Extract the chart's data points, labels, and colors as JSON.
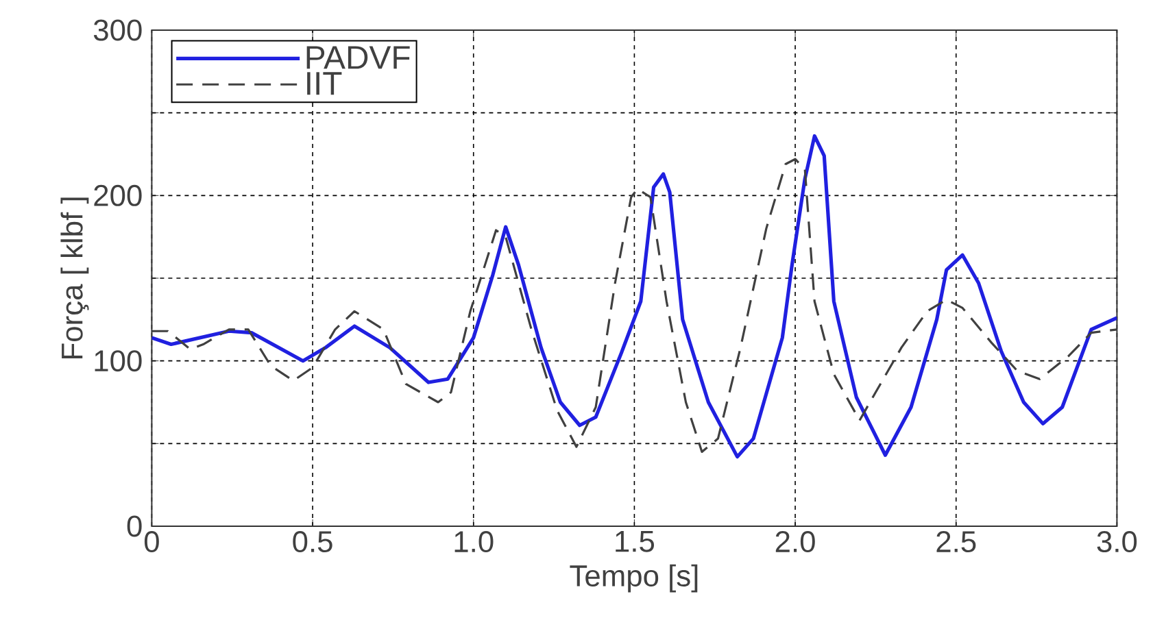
{
  "chart_data": {
    "type": "line",
    "xlabel": "Tempo [s]",
    "ylabel": "Força [ klbf ]",
    "xlim": [
      0,
      3
    ],
    "ylim": [
      0,
      300
    ],
    "xticks": [
      0,
      0.5,
      {
        "value": 1,
        "label": "1.0"
      },
      1.5,
      {
        "value": 2,
        "label": "2.0"
      },
      2.5,
      {
        "value": 3,
        "label": "3.0"
      }
    ],
    "yticks": [
      0,
      {
        "value": 50,
        "label": null
      },
      100,
      {
        "value": 150,
        "label": null
      },
      200,
      {
        "value": 250,
        "label": null
      },
      300
    ],
    "grid": true,
    "legend": "top left",
    "series": [
      {
        "name": "PADVF",
        "color": "#2020e0",
        "line_style": "solid",
        "x": [
          0,
          0.06,
          0.24,
          0.31,
          0.47,
          0.54,
          0.63,
          0.74,
          0.86,
          0.92,
          1.0,
          1.06,
          1.1,
          1.14,
          1.21,
          1.27,
          1.33,
          1.38,
          1.46,
          1.52,
          1.56,
          1.59,
          1.61,
          1.65,
          1.73,
          1.82,
          1.87,
          1.96,
          1.99,
          2.03,
          2.06,
          2.09,
          2.12,
          2.19,
          2.28,
          2.36,
          2.44,
          2.47,
          2.52,
          2.57,
          2.64,
          2.71,
          2.77,
          2.83,
          2.92,
          3.0
        ],
        "values": [
          114,
          110,
          118,
          117,
          100,
          108,
          121,
          108,
          87,
          89,
          114,
          152,
          181,
          158,
          108,
          75,
          61,
          66,
          105,
          136,
          205,
          213,
          202,
          125,
          75,
          42,
          53,
          114,
          158,
          210,
          236,
          224,
          136,
          78,
          43,
          72,
          125,
          155,
          164,
          147,
          106,
          75,
          62,
          72,
          119,
          126
        ]
      },
      {
        "name": "IIT",
        "color": "#404040",
        "line_style": "dashed",
        "x": [
          0,
          0.05,
          0.12,
          0.16,
          0.24,
          0.3,
          0.37,
          0.44,
          0.5,
          0.57,
          0.63,
          0.72,
          0.79,
          0.89,
          0.93,
          0.99,
          1.07,
          1.1,
          1.18,
          1.26,
          1.32,
          1.38,
          1.44,
          1.49,
          1.51,
          1.55,
          1.6,
          1.66,
          1.71,
          1.76,
          1.83,
          1.91,
          1.97,
          2.0,
          2.03,
          2.06,
          2.12,
          2.2,
          2.25,
          2.33,
          2.41,
          2.47,
          2.52,
          2.61,
          2.69,
          2.76,
          2.85,
          2.92,
          3.0
        ],
        "values": [
          118,
          118,
          107,
          110,
          119,
          119,
          97,
          88,
          96,
          119,
          130,
          119,
          86,
          75,
          81,
          130,
          179,
          175,
          119,
          70,
          48,
          72,
          147,
          199,
          204,
          199,
          136,
          75,
          45,
          53,
          108,
          180,
          219,
          222,
          216,
          136,
          92,
          64,
          81,
          108,
          130,
          137,
          132,
          111,
          94,
          89,
          103,
          117,
          119
        ]
      }
    ]
  }
}
